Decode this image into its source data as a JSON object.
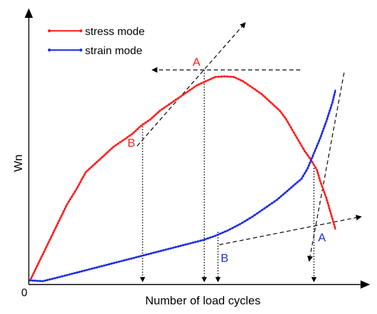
{
  "chart_data": {
    "type": "line",
    "xlabel": "Number of load cycles",
    "ylabel": "Wn",
    "origin_label": "0",
    "xlim": [
      0,
      100
    ],
    "ylim": [
      0,
      100
    ],
    "grid": false,
    "legend_position": "top-left",
    "colors": {
      "stress": "#ff2020",
      "strain": "#1f2fe0",
      "guide": "#000000"
    },
    "series": [
      {
        "name": "stress mode",
        "color": "#ff2020",
        "marker": "dot",
        "x": [
          0,
          3,
          6,
          9,
          12,
          15,
          18,
          21,
          24,
          27,
          30,
          33,
          36,
          39,
          42,
          45,
          48,
          51,
          54,
          57,
          60,
          63,
          66,
          69,
          72,
          75,
          78,
          81,
          83,
          85,
          87,
          89,
          91,
          93,
          94,
          95,
          96,
          97,
          98,
          99
        ],
        "y": [
          1,
          10,
          19,
          28,
          37,
          44,
          52,
          56,
          60,
          64,
          67,
          70,
          74,
          77,
          81,
          84,
          87,
          90,
          93,
          95,
          97,
          97.3,
          97,
          95,
          92,
          89,
          85,
          81,
          77,
          72,
          67,
          62,
          58,
          53,
          48,
          44,
          40,
          35,
          30,
          25
        ]
      },
      {
        "name": "strain mode",
        "color": "#1f2fe0",
        "marker": "dot",
        "x": [
          0,
          4,
          8,
          12,
          16,
          20,
          24,
          28,
          32,
          36,
          40,
          44,
          48,
          52,
          56,
          60,
          64,
          68,
          72,
          76,
          80,
          84,
          88,
          90,
          92,
          94,
          96,
          98,
          99
        ],
        "y": [
          1,
          0.6,
          2,
          3.5,
          5,
          6.5,
          8,
          9.5,
          11,
          12.5,
          14,
          15.5,
          17,
          18.5,
          20,
          22,
          24.5,
          27.5,
          31,
          35,
          39,
          44,
          49,
          54,
          61,
          68,
          76,
          85,
          91
        ]
      }
    ],
    "annotations": [
      {
        "text": "A",
        "series": "stress mode",
        "color": "#ff2020"
      },
      {
        "text": "B",
        "series": "stress mode",
        "color": "#ff2020"
      },
      {
        "text": "A",
        "series": "strain mode",
        "color": "#1f2fe0"
      },
      {
        "text": "B",
        "series": "strain mode",
        "color": "#1f2fe0"
      }
    ]
  }
}
